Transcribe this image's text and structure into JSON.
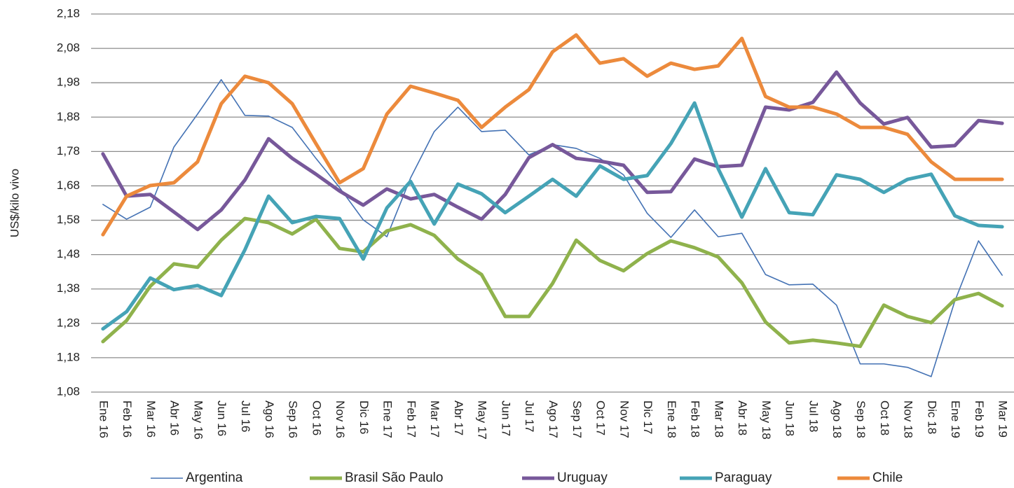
{
  "chart_data": {
    "type": "line",
    "y_label": "US$/kilo vivo",
    "categories": [
      "Ene 16",
      "Feb 16",
      "Mar 16",
      "Abr 16",
      "May 16",
      "Jun 16",
      "Jul 16",
      "Ago 16",
      "Sep 16",
      "Oct 16",
      "Nov 16",
      "Dic 16",
      "Ene 17",
      "Feb 17",
      "Mar 17",
      "Abr 17",
      "May 17",
      "Jun 17",
      "Jul 17",
      "Ago 17",
      "Sep 17",
      "Oct 17",
      "Nov 17",
      "Dic 17",
      "Ene 18",
      "Feb 18",
      "Mar 18",
      "Abr 18",
      "May 18",
      "Jun 18",
      "Jul 18",
      "Ago 18",
      "Sep 18",
      "Oct 18",
      "Nov 18",
      "Dic 18",
      "Ene 19",
      "Feb 19",
      "Mar 19"
    ],
    "series": [
      {
        "name": "Argentina",
        "color": "#4472b4",
        "line_width": 1.6,
        "values": [
          1.626,
          1.583,
          1.618,
          1.793,
          1.889,
          1.989,
          1.885,
          1.883,
          1.85,
          1.76,
          1.675,
          1.581,
          1.532,
          1.703,
          1.838,
          1.909,
          1.838,
          1.842,
          1.77,
          1.8,
          1.789,
          1.76,
          1.712,
          1.6,
          1.53,
          1.61,
          1.532,
          1.542,
          1.422,
          1.392,
          1.394,
          1.333,
          1.162,
          1.162,
          1.152,
          1.125,
          1.345,
          1.52,
          1.42
        ]
      },
      {
        "name": "Brasil São Paulo",
        "color": "#8fb24c",
        "line_width": 5,
        "values": [
          1.227,
          1.288,
          1.388,
          1.453,
          1.443,
          1.522,
          1.585,
          1.573,
          1.54,
          1.583,
          1.498,
          1.488,
          1.549,
          1.567,
          1.536,
          1.467,
          1.422,
          1.3,
          1.3,
          1.396,
          1.522,
          1.463,
          1.433,
          1.483,
          1.52,
          1.5,
          1.473,
          1.398,
          1.284,
          1.223,
          1.231,
          1.223,
          1.213,
          1.333,
          1.3,
          1.282,
          1.349,
          1.367,
          1.331
        ]
      },
      {
        "name": "Uruguay",
        "color": "#77589a",
        "line_width": 5,
        "values": [
          1.773,
          1.65,
          1.655,
          1.604,
          1.553,
          1.61,
          1.697,
          1.817,
          1.76,
          1.714,
          1.665,
          1.624,
          1.671,
          1.642,
          1.655,
          1.618,
          1.583,
          1.655,
          1.762,
          1.8,
          1.76,
          1.752,
          1.74,
          1.661,
          1.663,
          1.758,
          1.736,
          1.74,
          1.909,
          1.901,
          1.923,
          2.011,
          1.921,
          1.86,
          1.879,
          1.793,
          1.797,
          1.87,
          1.862
        ]
      },
      {
        "name": "Paraguay",
        "color": "#45a3b6",
        "line_width": 5,
        "values": [
          1.264,
          1.314,
          1.412,
          1.378,
          1.39,
          1.361,
          1.494,
          1.65,
          1.573,
          1.591,
          1.585,
          1.467,
          1.616,
          1.693,
          1.569,
          1.685,
          1.657,
          1.602,
          1.65,
          1.699,
          1.65,
          1.738,
          1.699,
          1.71,
          1.803,
          1.921,
          1.73,
          1.589,
          1.73,
          1.602,
          1.596,
          1.712,
          1.699,
          1.661,
          1.699,
          1.714,
          1.593,
          1.565,
          1.561
        ]
      },
      {
        "name": "Chile",
        "color": "#ec8a3c",
        "line_width": 5,
        "values": [
          1.538,
          1.65,
          1.681,
          1.689,
          1.75,
          1.919,
          1.999,
          1.98,
          1.919,
          1.803,
          1.689,
          1.73,
          1.889,
          1.97,
          1.95,
          1.929,
          1.85,
          1.909,
          1.96,
          2.07,
          2.119,
          2.037,
          2.05,
          1.999,
          2.037,
          2.019,
          2.029,
          2.109,
          1.94,
          1.909,
          1.909,
          1.889,
          1.85,
          1.85,
          1.83,
          1.75,
          1.699,
          1.699,
          1.699
        ]
      }
    ],
    "ylim": [
      1.08,
      2.18
    ],
    "yticks": [
      {
        "value": 1.08,
        "label": "1,08"
      },
      {
        "value": 1.18,
        "label": "1,18"
      },
      {
        "value": 1.28,
        "label": "1,28"
      },
      {
        "value": 1.38,
        "label": "1,38"
      },
      {
        "value": 1.48,
        "label": "1,48"
      },
      {
        "value": 1.58,
        "label": "1,58"
      },
      {
        "value": 1.68,
        "label": "1,68"
      },
      {
        "value": 1.78,
        "label": "1,78"
      },
      {
        "value": 1.88,
        "label": "1,88"
      },
      {
        "value": 1.98,
        "label": "1,98"
      },
      {
        "value": 2.08,
        "label": "2,08"
      },
      {
        "value": 2.18,
        "label": "2,18"
      }
    ],
    "grid": true,
    "legend": "bottom"
  }
}
